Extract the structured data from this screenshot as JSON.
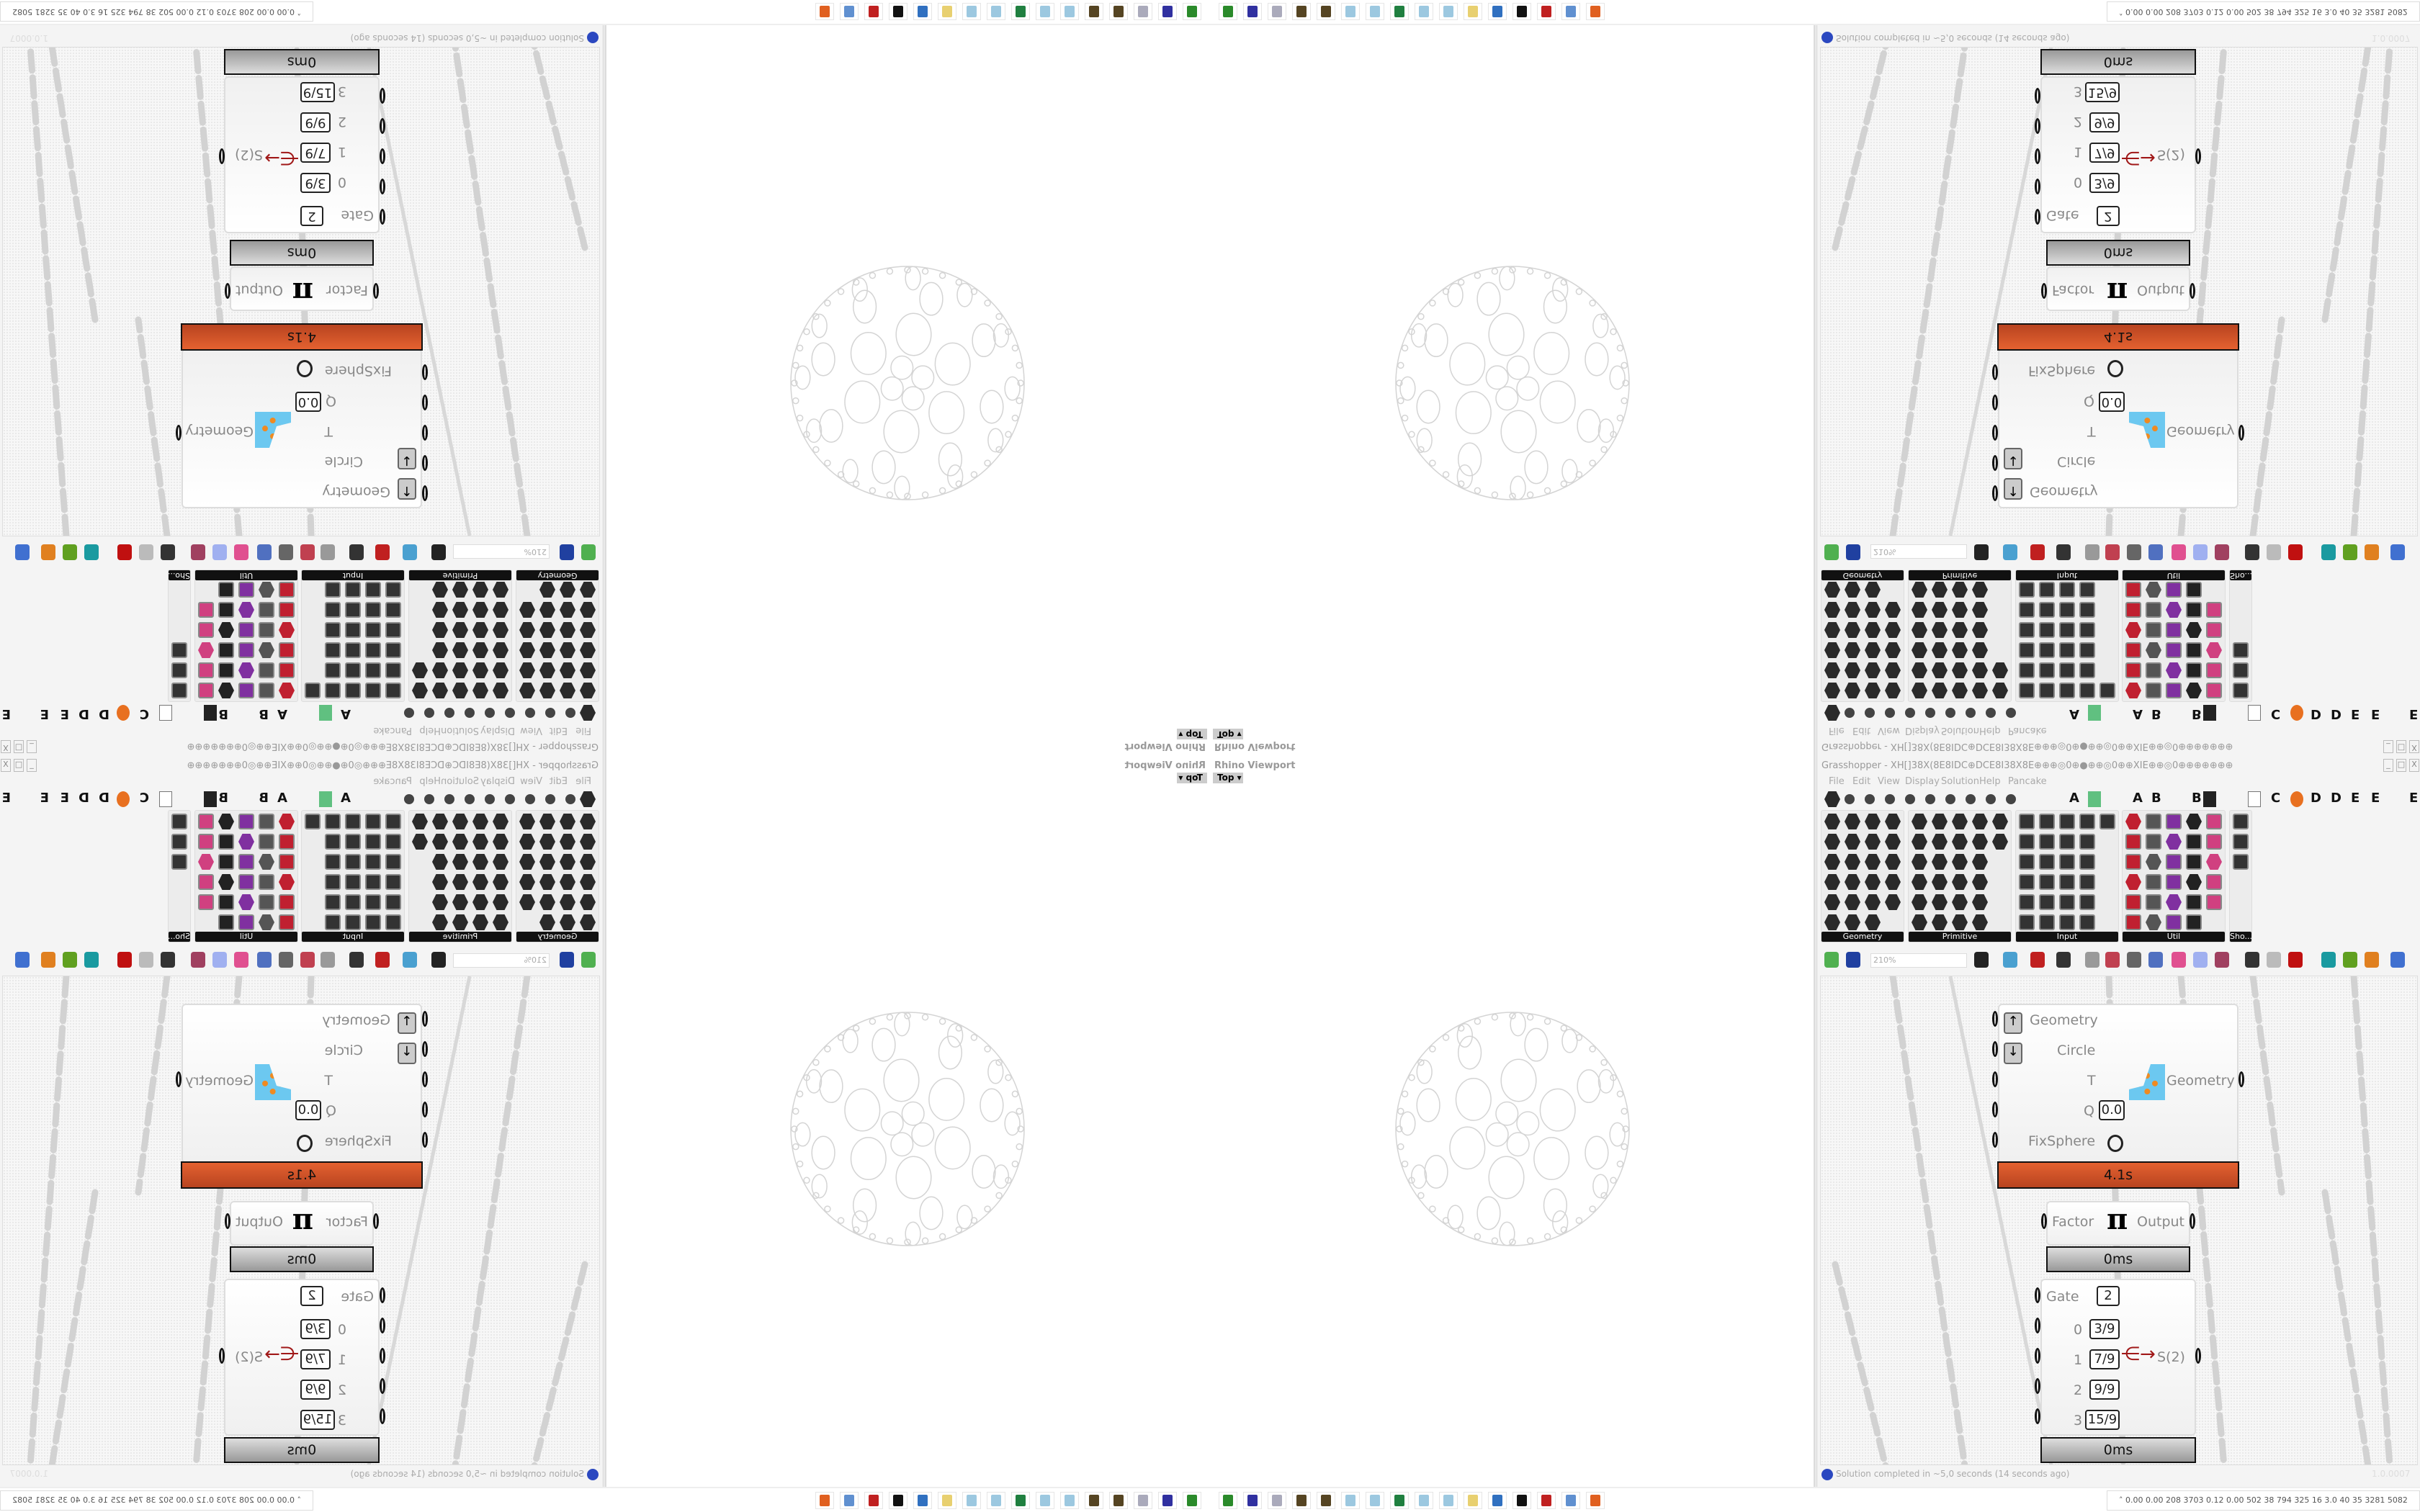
{
  "viewport": {
    "title": "Rhino Viewport",
    "view": "Top",
    "view_menu_icon": "chevron-down-icon"
  },
  "grasshopper": {
    "title": "Grasshopper - XH[]38X(8E8IDC⊕DCE8I38X8E⊕⊕⊕◎0⊕●⊕⊕◎0⊕⊕XIE⊕⊕◎0⊕⊕⊕⊕⊕⊕⊕",
    "window_buttons": [
      "_",
      "□",
      "X"
    ],
    "menu": [
      "File",
      "Edit",
      "View",
      "Display",
      "Solution",
      "Help",
      "Pancake"
    ],
    "tab_letters": [
      "A",
      "A",
      "B",
      "B",
      "C",
      "D",
      "D",
      "E",
      "E",
      "E"
    ],
    "panels": [
      "Geometry",
      "Primitive",
      "Input",
      "Util",
      "Sho..."
    ],
    "zoom": "210%",
    "nodes": {
      "kangaroo": {
        "inputs": [
          "Geometry",
          "Circle",
          "T",
          "Q",
          "FixSphere"
        ],
        "q_value": "0.0",
        "output": "Geometry",
        "time": "4.1s"
      },
      "pi": {
        "input": "Factor",
        "output": "Output",
        "symbol": "π",
        "time": "0ms"
      },
      "gate": {
        "gate_label": "Gate",
        "gate_value": "2",
        "index_labels": [
          "0",
          "1",
          "2",
          "3"
        ],
        "values": [
          "3/9",
          "7/9",
          "9/9",
          "15/9"
        ],
        "output": "S(2)",
        "time": "0ms"
      }
    },
    "status": "Solution completed in ~5,0 seconds (14 seconds ago)",
    "version": "1.0.0007"
  },
  "tray": {
    "readout": "0.00 0.00 208 3703 0.12 0.00 502  38  794  325  16  3.0  40  35  3281 5082"
  },
  "colors": {
    "accent_orange": "#e46130",
    "node_grey": "#bbbbbb",
    "canvas": "#f7f7f7"
  }
}
